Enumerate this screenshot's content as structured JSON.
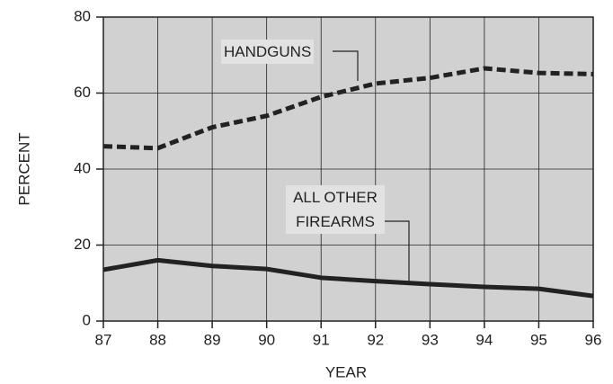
{
  "chart_data": {
    "type": "line",
    "x_label": "YEAR",
    "y_label": "PERCENT",
    "x": [
      87,
      88,
      89,
      90,
      91,
      92,
      93,
      94,
      95,
      96
    ],
    "series": [
      {
        "name": "HANDGUNS",
        "color": "#222222",
        "dash": true,
        "values": [
          46,
          45.5,
          51,
          54,
          59,
          62.5,
          64,
          66.5,
          65.3,
          65
        ]
      },
      {
        "name": "ALL OTHER FIREARMS",
        "color": "#222222",
        "dash": false,
        "values": [
          13.5,
          16,
          14.5,
          13.7,
          11.4,
          10.5,
          9.7,
          9,
          8.5,
          6.6
        ]
      }
    ],
    "xlim": [
      87,
      96
    ],
    "xticks": [
      87,
      88,
      89,
      90,
      91,
      92,
      93,
      94,
      95,
      96
    ],
    "ylim": [
      0,
      80
    ],
    "yticks": [
      0,
      20,
      40,
      60,
      80
    ],
    "grid": true,
    "background": "#d1d1d1"
  }
}
